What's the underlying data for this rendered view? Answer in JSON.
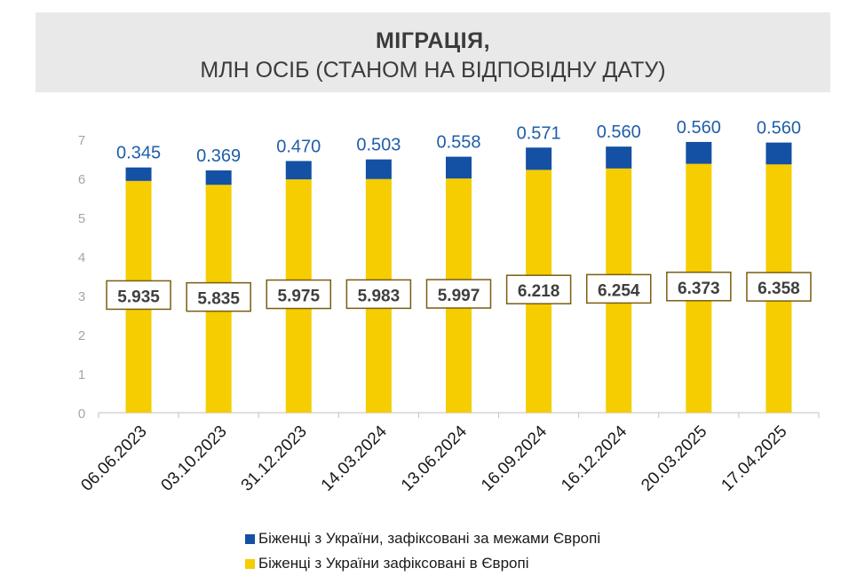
{
  "title": "МІГРАЦІЯ,",
  "subtitle": "МЛН ОСІБ (СТАНОМ НА ВІДПОВІДНУ ДАТУ)",
  "colors": {
    "europe": "#f5cd00",
    "outside": "#1450a3",
    "outside_label": "#1f5ea8",
    "europe_label_box": "#7a5d10",
    "axis": "#bfbfbf",
    "tick_text": "#a6a6a6"
  },
  "legend": [
    {
      "label": "Біженці з України, зафіксовані за межами Європі",
      "color": "#1450a3"
    },
    {
      "label": "Біженці з України зафіксовані в Європі",
      "color": "#f5cd00"
    }
  ],
  "chart_data": {
    "type": "bar",
    "stacked": true,
    "categories": [
      "06.06.2023",
      "03.10.2023",
      "31.12.2023",
      "14.03.2024",
      "13.06.2024",
      "16.09.2024",
      "16.12.2024",
      "20.03.2025",
      "17.04.2025"
    ],
    "series": [
      {
        "name": "Біженці з України зафіксовані в Європі",
        "values": [
          5.935,
          5.835,
          5.975,
          5.983,
          5.997,
          6.218,
          6.254,
          6.373,
          6.358
        ],
        "labels": [
          "5.935",
          "5.835",
          "5.975",
          "5.983",
          "5.997",
          "6.218",
          "6.254",
          "6.373",
          "6.358"
        ]
      },
      {
        "name": "Біженці з України, зафіксовані за межами Європі",
        "values": [
          0.345,
          0.369,
          0.47,
          0.503,
          0.558,
          0.571,
          0.56,
          0.56,
          0.56
        ],
        "labels": [
          "0.345",
          "0.369",
          "0.470",
          "0.503",
          "0.558",
          "0.571",
          "0.560",
          "0.560",
          "0.560"
        ]
      }
    ],
    "ylim": [
      0,
      7
    ],
    "yticks": [
      "0",
      "1",
      "2",
      "3",
      "4",
      "5",
      "6",
      "7"
    ],
    "grid": false,
    "legend_position": "bottom"
  }
}
